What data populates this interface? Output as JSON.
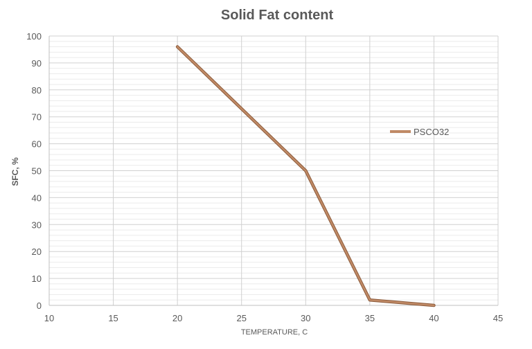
{
  "chart_data": {
    "type": "line",
    "title": "Solid Fat content",
    "xlabel": "TEMPERATURE,  C",
    "ylabel": "SFC, %",
    "xlim": [
      10,
      45
    ],
    "ylim": [
      0,
      100
    ],
    "x_ticks": [
      10,
      15,
      20,
      25,
      30,
      35,
      40,
      45
    ],
    "y_ticks": [
      0,
      10,
      20,
      30,
      40,
      50,
      60,
      70,
      80,
      90,
      100
    ],
    "grid": true,
    "legend_position": "right",
    "series": [
      {
        "name": "PSCO32",
        "color": "#c08a66",
        "x": [
          20,
          30,
          35,
          40
        ],
        "y": [
          96,
          50,
          2,
          0
        ]
      }
    ]
  }
}
